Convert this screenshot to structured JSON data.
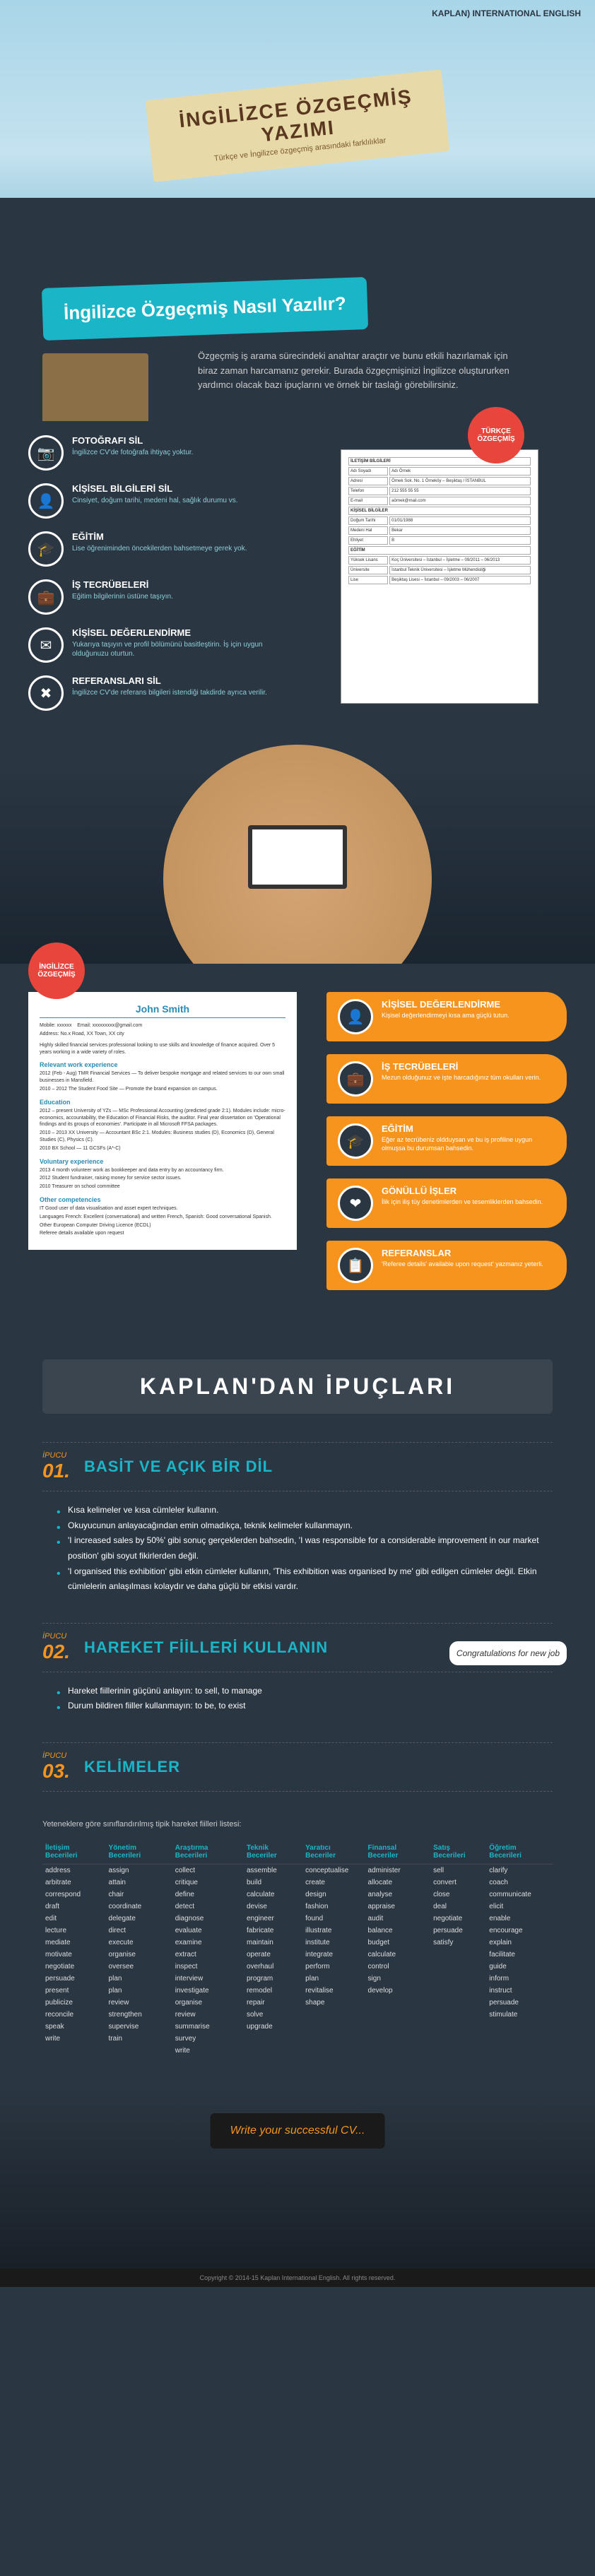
{
  "logo": "KAPLAN) INTERNATIONAL ENGLISH",
  "banner": {
    "title": "İNGİLİZCE ÖZGEÇMİŞ YAZIMI",
    "subtitle": "Türkçe ve İngilizce özgeçmiş arasındaki farklılıklar"
  },
  "section1": {
    "title": "İngilizce Özgeçmiş Nasıl Yazılır?",
    "intro": "Özgeçmiş iş arama sürecindeki anahtar araçtır ve bunu etkili hazırlamak için biraz zaman harcamanız gerekir. Burada özgeçmişinizi İngilizce oluştururken yardımcı olacak bazı ipuçlarını ve örnek bir taslağı görebilirsiniz."
  },
  "badges": {
    "tr": "TÜRKÇE ÖZGEÇMİŞ",
    "en": "İNGİLİZCE ÖZGEÇMİŞ"
  },
  "left_features": [
    {
      "icon": "📷",
      "title": "FOTOĞRAFI SİL",
      "desc": "İngilizce CV'de fotoğrafa ihtiyaç yoktur."
    },
    {
      "icon": "👤",
      "title": "KİŞİSEL BİLGİLERİ SİL",
      "desc": "Cinsiyet, doğum tarihi, medeni hal, sağlık durumu vs."
    },
    {
      "icon": "🎓",
      "title": "EĞİTİM",
      "desc": "Lise öğreniminden öncekilerden bahsetmeye gerek yok."
    },
    {
      "icon": "💼",
      "title": "İŞ TECRÜBELERİ",
      "desc": "Eğitim bilgilerinin üstüne taşıyın."
    },
    {
      "icon": "✉",
      "title": "KİŞİSEL DEĞERLENDİRME",
      "desc": "Yukarıya taşıyın ve profil bölümünü basitleştirin. İş için uygun olduğunuzu oturtun."
    },
    {
      "icon": "✖",
      "title": "REFERANSLARI SİL",
      "desc": "İngilizce CV'de referans bilgileri istendiği takdirde ayrıca verilir."
    }
  ],
  "right_features": [
    {
      "icon": "👤",
      "title": "KİŞİSEL DEĞERLENDİRME",
      "desc": "Kişisel değerlendirmeyi kısa ama güçlü tutun."
    },
    {
      "icon": "💼",
      "title": "İŞ TECRÜBELERİ",
      "desc": "Mezun olduğunuz ve işte harcadığınız tüm okulları verin."
    },
    {
      "icon": "🎓",
      "title": "EĞİTİM",
      "desc": "Eğer az tecrübeniz oldduysan ve bu iş profiline uygun olmuşsa bu durumsan bahsedin."
    },
    {
      "icon": "❤",
      "title": "GÖNÜLLÜ İŞLER",
      "desc": "İlik için iliş tüy denetimlerden ve tesemliklerden bahsedin."
    },
    {
      "icon": "📋",
      "title": "REFERANSLAR",
      "desc": "'Referee details' available upon request' yazmanız yeterli."
    }
  ],
  "eng_cv": {
    "name": "John Smith",
    "mobile": "Mobile: xxxxxx",
    "email": "Email: xxxxxxxxx@gmail.com",
    "address": "Address: No.x Road, XX Town, XX city",
    "profile": "Highly skilled financial services professional looking to use skills and knowledge of finance acquired. Over 5 years working in a wide variety of roles.",
    "sections": [
      {
        "h": "Relevant work experience",
        "items": [
          "2012 (Feb - Aug)  TMR Financial Services — To deliver bespoke mortgage and related services to our own small businesses in Mansfield.",
          "2010 – 2012  The Student Food Site — Promote the brand expansion on campus."
        ]
      },
      {
        "h": "Education",
        "items": [
          "2012 – present  University of YZs — MSc Professional Accounting (predicted grade 2:1). Modules include: micro-economics, accountability, the Education of Financial Risks, the auditor. Final year dissertation on 'Operational findings and its groups of economies'. Participate in all Microsoft FFSA packages.",
          "2010 – 2013  XX University — Accountant BSc 2:1. Modules: Business studies (D), Economics (D), General Studies (C), Physics (C).",
          "2010  BX School — 11 GCSFs (A*-C)"
        ]
      },
      {
        "h": "Voluntary experience",
        "items": [
          "2013  4 month volunteer work as bookkeeper and data entry by an accountancy firm.",
          "2012  Student fundraiser, raising money for service sector issues.",
          "2010  Treasurer on school committee"
        ]
      },
      {
        "h": "Other competencies",
        "items": [
          "IT  Good user of data visualisation and asset expert techniques.",
          "Languages  French: Excellent (conversational) and written French, Spanish: Good conversational Spanish.",
          "Other  European Computer Driving Licence (ECDL)"
        ]
      },
      {
        "h": "",
        "items": [
          "Referee details available upon request"
        ]
      }
    ]
  },
  "tips_title": "KAPLAN'DAN İPUÇLARI",
  "tips": [
    {
      "num": "01.",
      "label": "İPUCU",
      "title": "BASİT VE AÇIK BİR DİL",
      "bullets": [
        "Kısa kelimeler ve kısa cümleler kullanın.",
        "Okuyucunun anlayacağından emin olmadıkça, teknik kelimeler kullanmayın.",
        "'I increased sales by 50%' gibi sonuç gerçeklerden bahsedin, 'I was responsible for a considerable improvement in our market position' gibi soyut fikirlerden değil.",
        "'I organised this exhibition' gibi etkin cümleler kullanın, 'This exhibition was organised by me' gibi edilgen cümleler değil. Etkin cümlelerin anlaşılması kolaydır ve daha güçlü bir etkisi vardır."
      ]
    },
    {
      "num": "02.",
      "label": "İPUCU",
      "title": "HAREKET FİİLLERİ KULLANIN",
      "bullets": [
        "Hareket fiillerinin güçünü anlayın: to sell, to manage",
        "Durum bildiren fiiller kullanmayın: to be, to exist"
      ]
    },
    {
      "num": "03.",
      "label": "İPUCU",
      "title": "KELİMELER",
      "intro": "Yeteneklere göre sınıflandırılmış tipik hareket fiilleri listesi:"
    }
  ],
  "congrats": "Congratulations for new job",
  "verb_table": {
    "headers": [
      "İletişim Becerileri",
      "Yönetim Becerileri",
      "Araştırma Becerileri",
      "Teknik Beceriler",
      "Yaratıcı Beceriler",
      "Finansal Beceriler",
      "Satış Becerileri",
      "Öğretim Becerileri"
    ],
    "rows": [
      [
        "address",
        "assign",
        "collect",
        "assemble",
        "conceptualise",
        "administer",
        "sell",
        "clarify"
      ],
      [
        "arbitrate",
        "attain",
        "critique",
        "build",
        "create",
        "allocate",
        "convert",
        "coach"
      ],
      [
        "correspond",
        "chair",
        "define",
        "calculate",
        "design",
        "analyse",
        "close",
        "communicate"
      ],
      [
        "draft",
        "coordinate",
        "detect",
        "devise",
        "fashion",
        "appraise",
        "deal",
        "elicit"
      ],
      [
        "edit",
        "delegate",
        "diagnose",
        "engineer",
        "found",
        "audit",
        "negotiate",
        "enable"
      ],
      [
        "lecture",
        "direct",
        "evaluate",
        "fabricate",
        "illustrate",
        "balance",
        "persuade",
        "encourage"
      ],
      [
        "mediate",
        "execute",
        "examine",
        "maintain",
        "institute",
        "budget",
        "satisfy",
        "explain"
      ],
      [
        "motivate",
        "organise",
        "extract",
        "operate",
        "integrate",
        "calculate",
        "",
        "facilitate"
      ],
      [
        "negotiate",
        "oversee",
        "inspect",
        "overhaul",
        "perform",
        "control",
        "",
        "guide"
      ],
      [
        "persuade",
        "plan",
        "interview",
        "program",
        "plan",
        "sign",
        "",
        "inform"
      ],
      [
        "present",
        "plan",
        "investigate",
        "remodel",
        "revitalise",
        "develop",
        "",
        "instruct"
      ],
      [
        "publicize",
        "review",
        "organise",
        "repair",
        "shape",
        "",
        "",
        "persuade"
      ],
      [
        "reconcile",
        "strengthen",
        "review",
        "solve",
        "",
        "",
        "",
        "stimulate"
      ],
      [
        "speak",
        "supervise",
        "summarise",
        "upgrade",
        "",
        "",
        "",
        ""
      ],
      [
        "write",
        "train",
        "survey",
        "",
        "",
        "",
        "",
        ""
      ],
      [
        "",
        "",
        "write",
        "",
        "",
        "",
        "",
        ""
      ]
    ]
  },
  "footer_sign": "Write your successful CV...",
  "copyright": "Copyright © 2014-15 Kaplan International English. All rights reserved."
}
